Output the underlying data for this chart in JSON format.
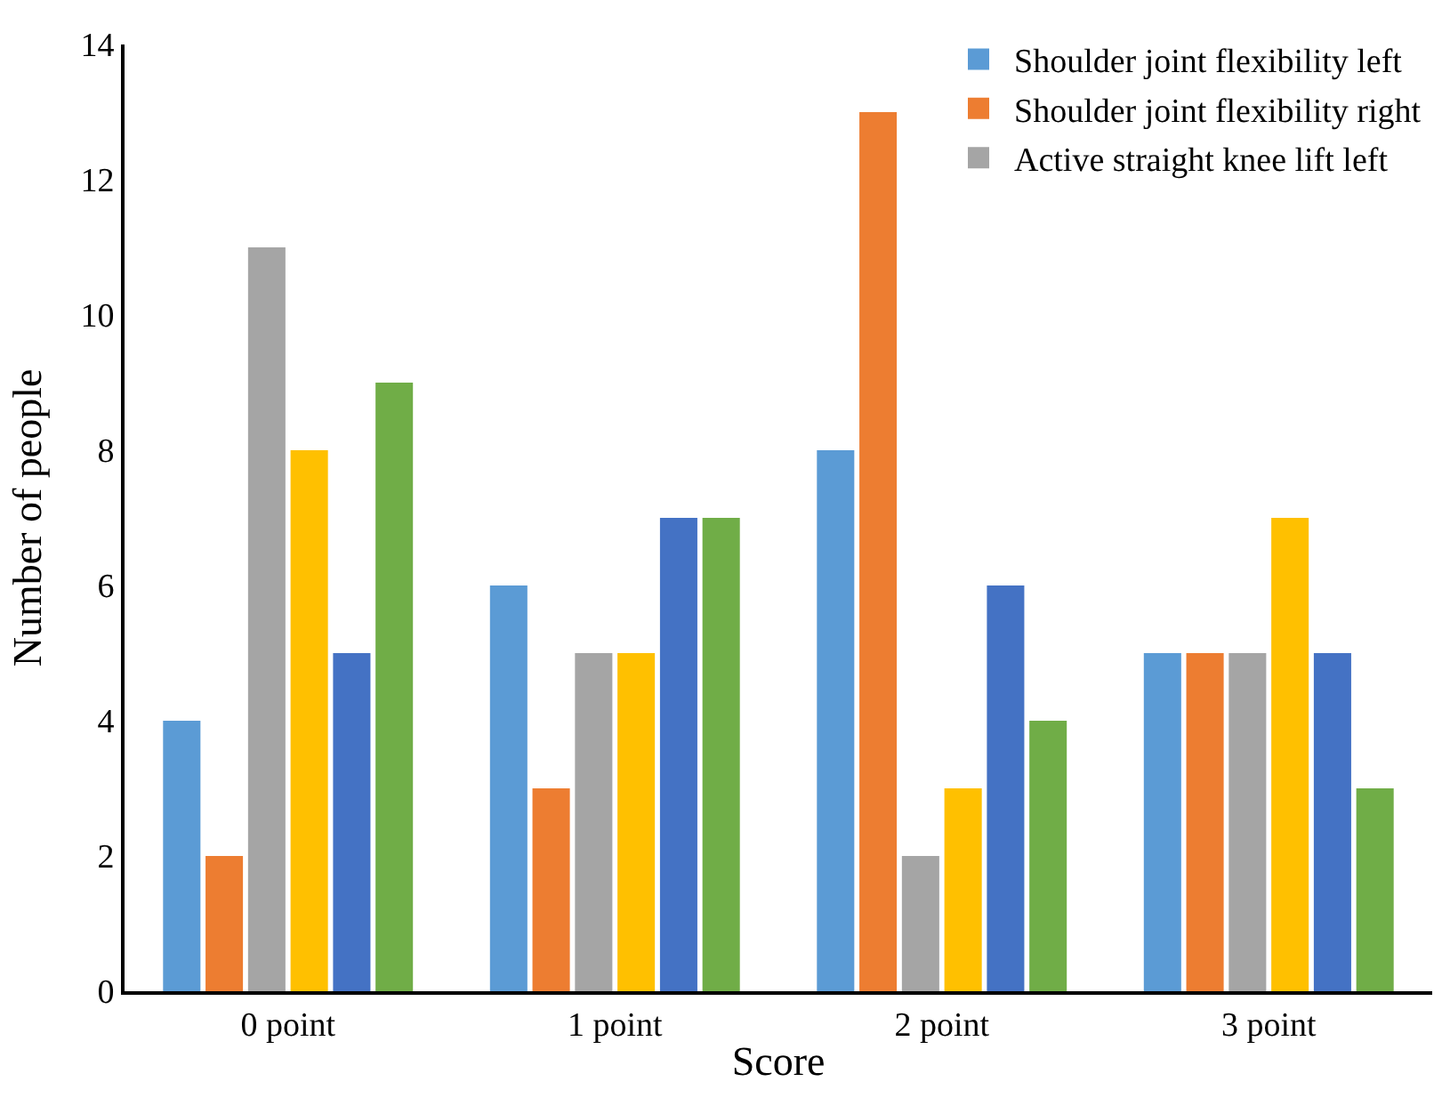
{
  "chart_data": {
    "type": "bar",
    "xlabel": "Score",
    "ylabel": "Number of people",
    "categories": [
      "0 point",
      "1 point",
      "2 point",
      "3 point"
    ],
    "series": [
      {
        "name": "Shoulder joint flexibility left",
        "color": "#5b9bd5",
        "values": [
          4,
          6,
          8,
          5
        ]
      },
      {
        "name": "Shoulder joint flexibility right",
        "color": "#ed7d31",
        "values": [
          2,
          3,
          13,
          5
        ]
      },
      {
        "name": "Active straight knee lift left",
        "color": "#a5a5a5",
        "values": [
          11,
          5,
          2,
          5
        ]
      },
      {
        "color": "#ffc000",
        "values": [
          8,
          5,
          3,
          7
        ]
      },
      {
        "color": "#4472c4",
        "values": [
          5,
          7,
          6,
          5
        ]
      },
      {
        "color": "#70ad47",
        "values": [
          9,
          7,
          4,
          3
        ]
      }
    ],
    "ylim": [
      0,
      14
    ],
    "yticks": [
      0,
      2,
      4,
      6,
      8,
      10,
      12,
      14
    ],
    "grid": false,
    "legend": "top right"
  }
}
